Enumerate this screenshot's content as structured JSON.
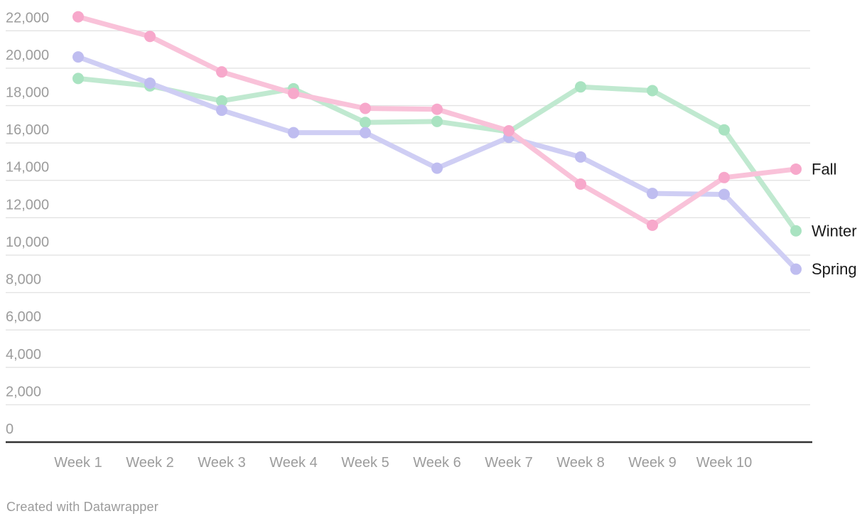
{
  "chart_data": {
    "type": "line",
    "title": "",
    "categories": [
      "Week 1",
      "Week 2",
      "Week 3",
      "Week 4",
      "Week 5",
      "Week 6",
      "Week 7",
      "Week 8",
      "Week 9",
      "Week 10",
      ""
    ],
    "x_tick_labels_visible": [
      "Week 1",
      "Week 2",
      "Week 3",
      "Week 4",
      "Week 5",
      "Week 6",
      "Week 7",
      "Week 8",
      "Week 9",
      "Week 10"
    ],
    "y_axis": {
      "min": 0,
      "max": 22000,
      "tick_step": 2000,
      "tick_labels": [
        "0",
        "2,000",
        "4,000",
        "6,000",
        "8,000",
        "10,000",
        "12,000",
        "14,000",
        "16,000",
        "18,000",
        "20,000",
        "22,000"
      ],
      "grid": true
    },
    "series": [
      {
        "name": "Fall",
        "line_color": "#f9c2d9",
        "dot_color": "#f7a8cb",
        "values": [
          22750,
          21700,
          19800,
          18650,
          17850,
          17800,
          16650,
          13800,
          11600,
          14150,
          14600
        ]
      },
      {
        "name": "Winter",
        "line_color": "#c0e9d0",
        "dot_color": "#a9e3c1",
        "values": [
          19450,
          19050,
          18250,
          18900,
          17100,
          17150,
          16600,
          19000,
          18800,
          16700,
          11300
        ]
      },
      {
        "name": "Spring",
        "line_color": "#cfcef4",
        "dot_color": "#bfbdf0",
        "values": [
          20600,
          19200,
          17750,
          16550,
          16550,
          14650,
          16300,
          15250,
          13300,
          13250,
          9250
        ]
      }
    ],
    "legend_position": "right-of-last-point",
    "label_colors": {
      "axis_text": "#9c9c9c",
      "series_label_text": "#1a1a1a",
      "gridline": "#e3e3e3",
      "baseline_axis": "#333333"
    }
  },
  "footer": {
    "credit": "Created with Datawrapper"
  }
}
